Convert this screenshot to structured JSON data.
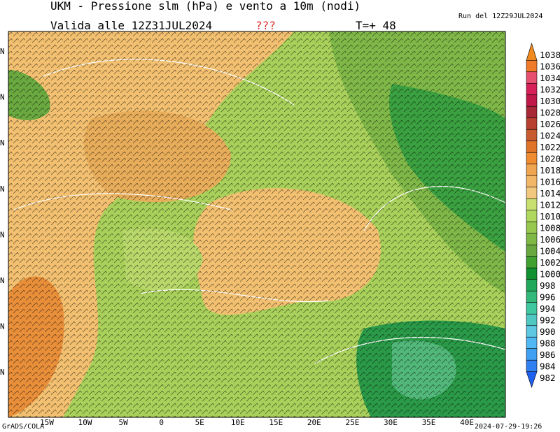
{
  "header": {
    "title": "UKM - Pressione slm (hPa) e vento a 10m (nodi)",
    "run": "Run del 12Z29JUL2024",
    "valid": "Valida alle 12Z31JUL2024",
    "warning": "???",
    "forecast": "T=+ 48"
  },
  "map": {
    "lon_labels": [
      "15W",
      "10W",
      "5W",
      "0",
      "5E",
      "10E",
      "15E",
      "20E",
      "25E",
      "30E",
      "35E",
      "40E"
    ],
    "lat_labels": [
      "N",
      "N",
      "N",
      "N",
      "N",
      "N",
      "N",
      "N"
    ]
  },
  "colorbar": {
    "levels": [
      1038,
      1036,
      1034,
      1032,
      1030,
      1028,
      1026,
      1024,
      1022,
      1020,
      1018,
      1016,
      1014,
      1012,
      1010,
      1008,
      1006,
      1004,
      1002,
      1000,
      998,
      996,
      994,
      992,
      990,
      988,
      986,
      984,
      982
    ],
    "colors": [
      "#f08a1e",
      "#ef7a2a",
      "#e85070",
      "#d82058",
      "#c01848",
      "#a82838",
      "#b84030",
      "#c85a30",
      "#e07428",
      "#ef8c32",
      "#f0a650",
      "#f2b868",
      "#f2c87e",
      "#c8e070",
      "#b0d85e",
      "#98c84e",
      "#80b846",
      "#68a83e",
      "#40a030",
      "#109030",
      "#22a85a",
      "#32b87a",
      "#40c8a0",
      "#50c8c2",
      "#5ec8e2",
      "#50b8f2",
      "#40a0f2",
      "#3080f2",
      "#2060f0"
    ]
  },
  "footer": {
    "left": "GrADS/COLA",
    "right": "2024-07-29-19:26"
  }
}
